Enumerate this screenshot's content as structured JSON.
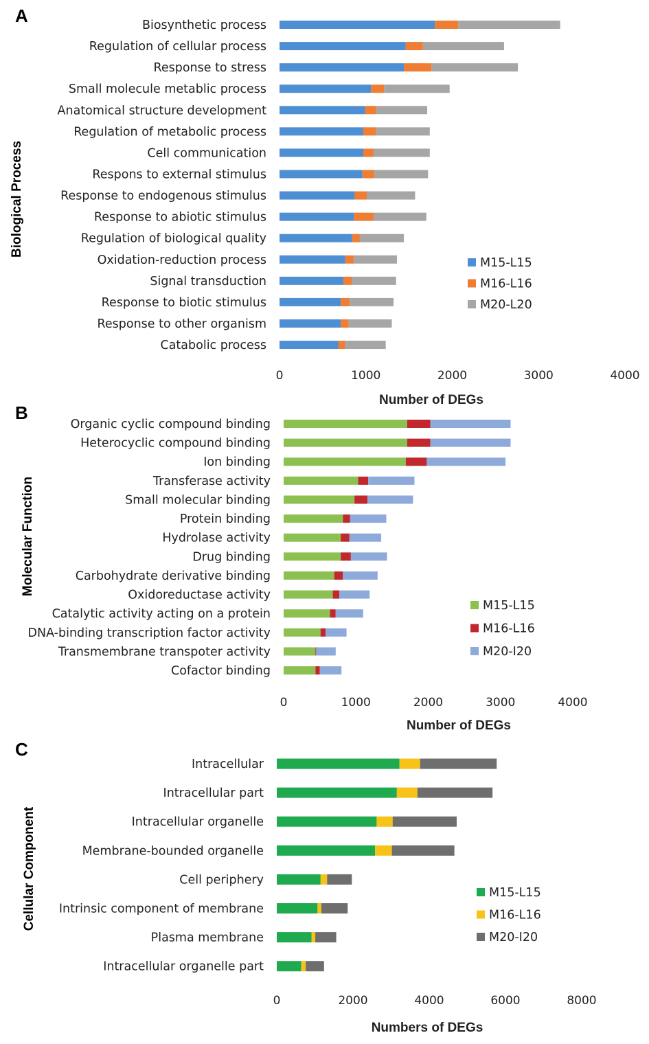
{
  "chart_data": [
    {
      "type": "bar",
      "orientation": "horizontal",
      "stacked": true,
      "panel": "A",
      "ylabel": "Biological Process",
      "xlabel": "Number of DEGs",
      "xlim": [
        0,
        4000
      ],
      "xticks": [
        "0",
        "1000",
        "2000",
        "3000",
        "4000"
      ],
      "legend_position": "right",
      "categories": [
        "Biosynthetic process",
        "Regulation of cellular process",
        "Response to stress",
        "Small molecule metablic process",
        "Anatomical structure development",
        "Regulation of metabolic process",
        "Cell communication",
        "Respons to external stimulus",
        "Response to endogenous stimulus",
        "Response to abiotic stimulus",
        "Regulation of biological quality",
        "Oxidation-reduction process",
        "Signal transduction",
        "Response to biotic stimulus",
        "Response to other organism",
        "Catabolic process"
      ],
      "series": [
        {
          "name": "M15-L15",
          "color": "#4e8fd3",
          "values": [
            1800,
            1460,
            1440,
            1060,
            990,
            970,
            970,
            960,
            870,
            860,
            840,
            760,
            740,
            710,
            710,
            680
          ]
        },
        {
          "name": "M16-L16",
          "color": "#ef7d32",
          "values": [
            270,
            200,
            320,
            150,
            130,
            150,
            120,
            140,
            140,
            230,
            90,
            100,
            100,
            100,
            90,
            80
          ]
        },
        {
          "name": "M20-L20",
          "color": "#a6a6a6",
          "values": [
            1180,
            940,
            1000,
            760,
            590,
            620,
            650,
            620,
            560,
            610,
            510,
            500,
            510,
            510,
            500,
            470
          ]
        }
      ]
    },
    {
      "type": "bar",
      "orientation": "horizontal",
      "stacked": true,
      "panel": "B",
      "ylabel": "Molecular Function",
      "xlabel": "Number of DEGs",
      "xlim": [
        0,
        4000
      ],
      "xticks": [
        "0",
        "1000",
        "2000",
        "3000",
        "4000"
      ],
      "legend_position": "right",
      "categories": [
        "Organic cyclic compound binding",
        "Heterocyclic compound binding",
        "Ion binding",
        "Transferase activity",
        "Small molecular binding",
        "Protein binding",
        "Hydrolase activity",
        "Drug binding",
        "Carbohydrate derivative binding",
        "Oxidoreductase activity",
        "Catalytic activity acting on a protein",
        "DNA-binding transcription factor activity",
        "Transmembrane transpoter activity",
        "Cofactor binding"
      ],
      "series": [
        {
          "name": "M15-L15",
          "color": "#8cc152",
          "values": [
            1710,
            1710,
            1690,
            1030,
            980,
            820,
            790,
            790,
            700,
            680,
            640,
            510,
            440,
            440
          ]
        },
        {
          "name": "M16-L16",
          "color": "#c0282d",
          "values": [
            320,
            320,
            290,
            140,
            180,
            100,
            120,
            140,
            120,
            90,
            80,
            70,
            10,
            60
          ]
        },
        {
          "name": "M20-I20",
          "color": "#8eaadb",
          "values": [
            1110,
            1110,
            1090,
            640,
            630,
            500,
            440,
            500,
            480,
            420,
            380,
            290,
            270,
            300
          ]
        }
      ]
    },
    {
      "type": "bar",
      "orientation": "horizontal",
      "stacked": true,
      "panel": "C",
      "ylabel": "Cellular Component",
      "xlabel": "Numbers of DEGs",
      "xlim": [
        0,
        8000
      ],
      "xticks": [
        "0",
        "2000",
        "4000",
        "6000",
        "8000"
      ],
      "legend_position": "right",
      "categories": [
        "Intracellular",
        "Intracellular part",
        "Intracellular organelle",
        "Membrane-bounded organelle",
        "Cell periphery",
        "Intrinsic component of membrane",
        "Plasma membrane",
        "Intracellular organelle part"
      ],
      "series": [
        {
          "name": "M15-L15",
          "color": "#1faa4f",
          "values": [
            3220,
            3150,
            2620,
            2580,
            1150,
            1070,
            910,
            640
          ]
        },
        {
          "name": "M16-L16",
          "color": "#f7c318",
          "values": [
            540,
            540,
            420,
            440,
            170,
            100,
            100,
            120
          ]
        },
        {
          "name": "M20-I20",
          "color": "#6e6e6e",
          "values": [
            2010,
            1970,
            1680,
            1640,
            650,
            690,
            550,
            480
          ]
        }
      ]
    }
  ]
}
